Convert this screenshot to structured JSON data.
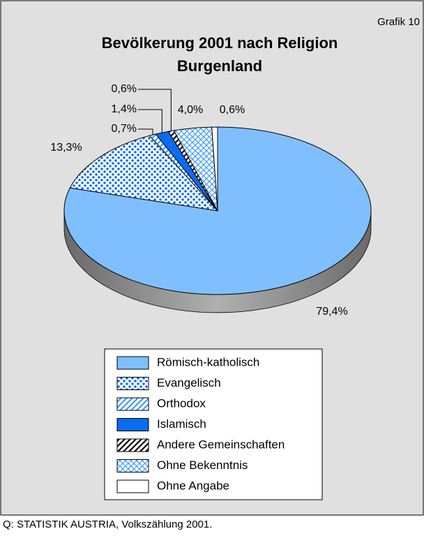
{
  "chart_data": {
    "type": "pie",
    "corner_label": "Grafik 10",
    "title": [
      "Bevölkerung 2001 nach Religion",
      "Burgenland"
    ],
    "categories": [
      "Römisch-katholisch",
      "Evangelisch",
      "Orthodox",
      "Islamisch",
      "Andere Gemeinschaften",
      "Ohne Bekenntnis",
      "Ohne Angabe"
    ],
    "values": [
      79.4,
      13.3,
      0.7,
      1.4,
      0.6,
      4.0,
      0.6
    ],
    "value_labels": [
      "79,4%",
      "13,3%",
      "0,7%",
      "1,4%",
      "0,6%",
      "4,0%",
      "0,6%"
    ],
    "colors": [
      "#80bfff",
      "#0a6cf0",
      "#3d9bff",
      "#0a6cf0",
      "#000000",
      "#3d9bff",
      "#ffffff"
    ],
    "patterns": [
      "solid",
      "dots",
      "hatch",
      "solid",
      "hatch",
      "crosshatch",
      "solid"
    ],
    "source": "Q: STATISTIK AUSTRIA, Volkszählung 2001."
  }
}
